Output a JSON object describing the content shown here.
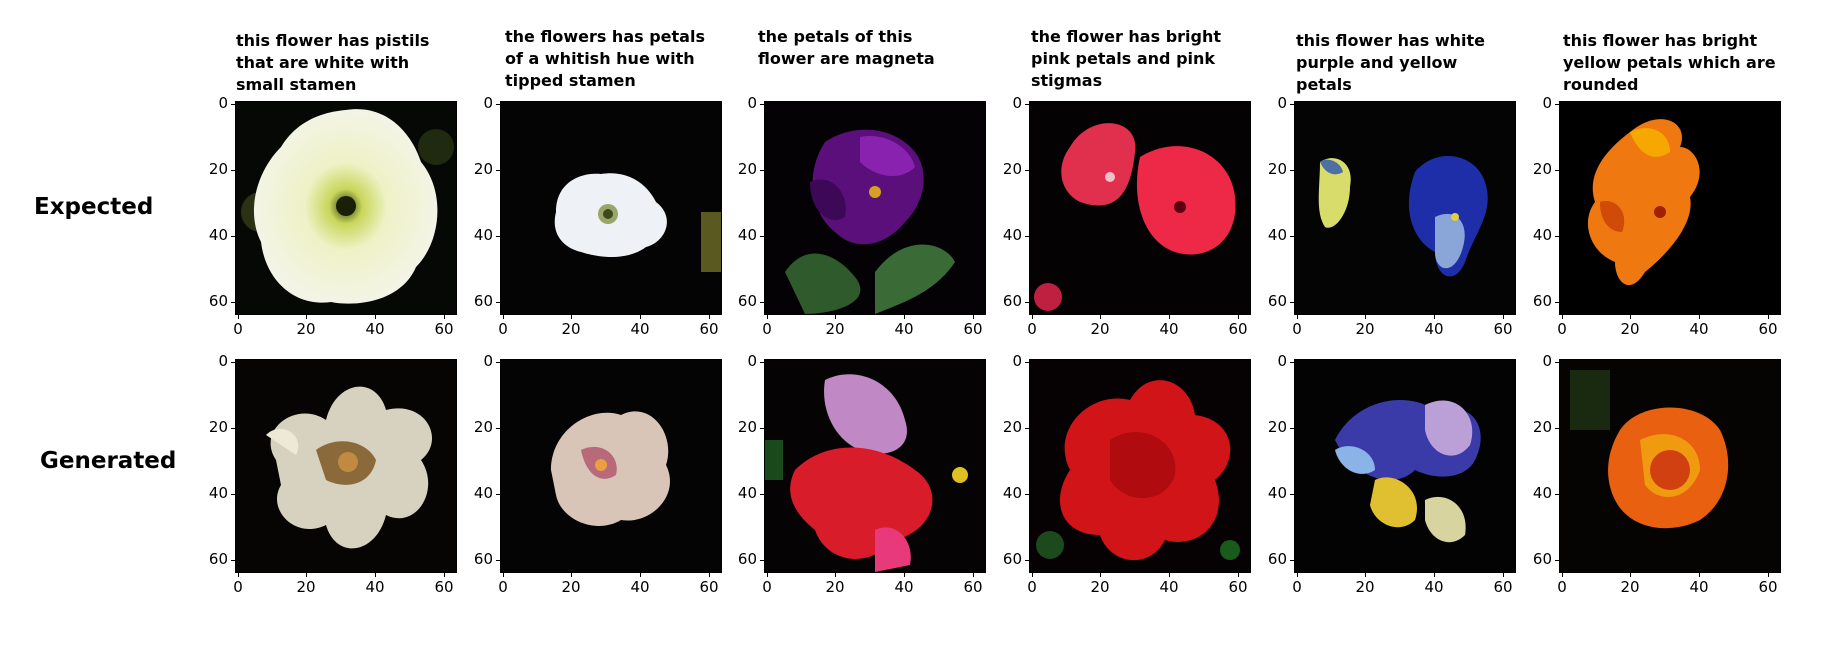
{
  "figure": {
    "row_labels": [
      "Expected",
      "Generated"
    ],
    "captions": [
      "this flower has pistils that are white with small stamen",
      "the flowers has petals of a whitish hue with tipped stamen",
      "the petals of this flower are magneta",
      "the flower has bright pink petals and pink stigmas",
      "this flower has white purple and yellow petals",
      "this flower has bright yellow petals which are rounded"
    ],
    "y_ticks": [
      "0",
      "20",
      "40",
      "60"
    ],
    "x_ticks": [
      "0",
      "20",
      "40",
      "60"
    ],
    "panels": [
      {
        "row": "Expected",
        "col": 1,
        "subject": "white-flower"
      },
      {
        "row": "Expected",
        "col": 2,
        "subject": "white-trumpet-flower"
      },
      {
        "row": "Expected",
        "col": 3,
        "subject": "magenta-flower"
      },
      {
        "row": "Expected",
        "col": 4,
        "subject": "pink-flowers"
      },
      {
        "row": "Expected",
        "col": 5,
        "subject": "pansies"
      },
      {
        "row": "Expected",
        "col": 6,
        "subject": "orange-yellow-flower"
      },
      {
        "row": "Generated",
        "col": 1,
        "subject": "white-flower"
      },
      {
        "row": "Generated",
        "col": 2,
        "subject": "pale-pink-flower"
      },
      {
        "row": "Generated",
        "col": 3,
        "subject": "red-purple-flower"
      },
      {
        "row": "Generated",
        "col": 4,
        "subject": "red-flower"
      },
      {
        "row": "Generated",
        "col": 5,
        "subject": "blue-purple-flower"
      },
      {
        "row": "Generated",
        "col": 6,
        "subject": "orange-flower"
      }
    ],
    "colors": {
      "background": "#ffffff",
      "panel": "#000000"
    }
  }
}
